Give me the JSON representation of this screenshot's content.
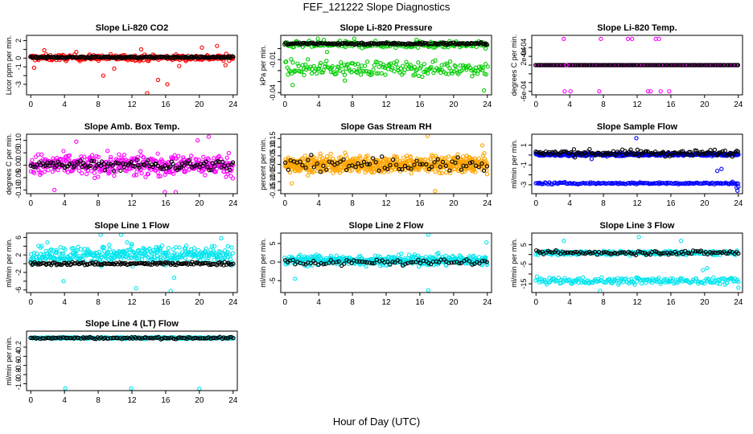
{
  "page": {
    "title": "FEF_121222  Slope Diagnostics",
    "x_axis_label": "Hour of Day (UTC)"
  },
  "colors": {
    "background": "#ffffff",
    "axis": "#000000",
    "co2": "#ff0000",
    "pressure": "#00cc00",
    "temperature": "#ff00ff",
    "box_temp": "#ff00ff",
    "rh": "#ffa500",
    "sample_flow": "#0000ff",
    "line_flow": "#00e5ee",
    "overlay": "#000000"
  },
  "chart_data": [
    {
      "type": "scatter",
      "title": "Slope Li-820 CO2",
      "xlabel": "",
      "ylabel": "Licor ppm per min.",
      "xlim": [
        -0.5,
        24.5
      ],
      "ylim": [
        -4.2,
        2.6
      ],
      "x_ticks": [
        "0",
        "4",
        "8",
        "12",
        "16",
        "20",
        "24"
      ],
      "y_ticks": [
        {
          "v": 2,
          "label": "2"
        },
        {
          "v": 1,
          "label": ""
        },
        {
          "v": 0,
          "label": "0"
        },
        {
          "v": -1,
          "label": "-1"
        },
        {
          "v": -2,
          "label": ""
        },
        {
          "v": -3,
          "label": "-3"
        }
      ],
      "series": [
        {
          "color_key": "co2",
          "band_center": 0.05,
          "band_spread": 0.45,
          "n": 300,
          "jitter": 0.25
        },
        {
          "color_key": "overlay",
          "band_center": 0.1,
          "band_spread": 0.12,
          "n": 190,
          "jitter": 0.08
        }
      ],
      "outliers": [
        [
          13.8,
          -4.1
        ],
        [
          16.2,
          -3.0
        ],
        [
          15.1,
          -2.5
        ],
        [
          8.6,
          -2.0
        ],
        [
          1.6,
          0.9
        ],
        [
          0.4,
          -1.1
        ],
        [
          23.1,
          -0.8
        ],
        [
          17.6,
          -0.9
        ],
        [
          20.3,
          1.2
        ],
        [
          22.1,
          1.4
        ],
        [
          5.4,
          0.7
        ],
        [
          9.9,
          -1.2
        ],
        [
          13.1,
          1.0
        ]
      ]
    },
    {
      "type": "scatter",
      "title": "Slope Li-820 Pressure",
      "xlabel": "",
      "ylabel": "kPa per min.",
      "xlim": [
        -0.5,
        24.5
      ],
      "ylim": [
        -0.042,
        0.012
      ],
      "x_ticks": [
        "0",
        "4",
        "8",
        "12",
        "16",
        "20",
        "24"
      ],
      "y_ticks": [
        {
          "v": 0.0,
          "label": ""
        },
        {
          "v": -0.01,
          "label": "-0.01"
        },
        {
          "v": -0.02,
          "label": ""
        },
        {
          "v": -0.03,
          "label": ""
        },
        {
          "v": -0.04,
          "label": "-0.04"
        }
      ],
      "series": [
        {
          "color_key": "pressure",
          "band_center": 0.0035,
          "band_spread": 0.004,
          "n": 200,
          "jitter": 0.002
        },
        {
          "color_key": "pressure",
          "band_center": -0.018,
          "band_spread": 0.009,
          "n": 200,
          "jitter": 0.004
        },
        {
          "color_key": "overlay",
          "band_center": 0.0045,
          "band_spread": 0.0015,
          "n": 170,
          "jitter": 0.0008
        }
      ],
      "outliers": [
        [
          3.9,
          0.009
        ],
        [
          4.6,
          0.008
        ],
        [
          15.6,
          0.008
        ],
        [
          17.3,
          0.006
        ],
        [
          0.9,
          -0.033
        ],
        [
          23.6,
          -0.038
        ],
        [
          8.2,
          0.009
        ],
        [
          7.1,
          -0.029
        ],
        [
          5.0,
          -0.003
        ]
      ]
    },
    {
      "type": "scatter",
      "title": "Slope Li-820 Temp.",
      "xlabel": "",
      "ylabel": "degrees C per min.",
      "xlim": [
        -0.5,
        24.5
      ],
      "ylim": [
        -0.00068,
        0.00068
      ],
      "x_ticks": [
        "0",
        "4",
        "8",
        "12",
        "16",
        "20",
        "24"
      ],
      "y_ticks": [
        {
          "v": 0.0004,
          "label": "4e-04"
        },
        {
          "v": 0.0002,
          "label": "2e-04"
        },
        {
          "v": 0.0,
          "label": ""
        },
        {
          "v": -0.0002,
          "label": ""
        },
        {
          "v": -0.0004,
          "label": ""
        },
        {
          "v": -0.0006,
          "label": "-6e-04"
        }
      ],
      "series": [
        {
          "color_key": "temperature",
          "band_center": 0.0,
          "band_spread": 0.0,
          "n": 240,
          "jitter": 0.0
        },
        {
          "color_key": "overlay",
          "band_center": 0.0,
          "band_spread": 0.0,
          "n": 120,
          "jitter": 0.0
        }
      ],
      "outliers": [
        [
          3.3,
          0.0006
        ],
        [
          7.7,
          0.0006
        ],
        [
          10.9,
          0.0006
        ],
        [
          11.4,
          0.0006
        ],
        [
          14.2,
          0.0006
        ],
        [
          14.6,
          0.0006
        ],
        [
          3.4,
          -0.0006
        ],
        [
          4.1,
          -0.0006
        ],
        [
          7.5,
          -0.0006
        ],
        [
          13.3,
          -0.0006
        ],
        [
          13.6,
          -0.0006
        ],
        [
          14.8,
          -0.0006
        ],
        [
          15.8,
          -0.0006
        ],
        [
          3.6,
          0.0
        ]
      ]
    },
    {
      "type": "scatter",
      "title": "Slope Amb. Box Temp.",
      "xlabel": "",
      "ylabel": "degrees C per min.",
      "xlim": [
        -0.5,
        24.5
      ],
      "ylim": [
        -0.115,
        0.125
      ],
      "x_ticks": [
        "0",
        "4",
        "8",
        "12",
        "16",
        "20",
        "24"
      ],
      "y_ticks": [
        {
          "v": 0.1,
          "label": "0.10"
        },
        {
          "v": 0.05,
          "label": "0.05"
        },
        {
          "v": 0.0,
          "label": "0.00"
        },
        {
          "v": -0.05,
          "label": "-0.05"
        },
        {
          "v": -0.1,
          "label": "-0.10"
        }
      ],
      "series": [
        {
          "color_key": "box_temp",
          "band_center": 0.0,
          "band_spread": 0.06,
          "n": 420,
          "jitter": 0.02
        },
        {
          "color_key": "overlay",
          "band_center": 0.0,
          "band_spread": 0.03,
          "n": 120,
          "jitter": 0.01
        }
      ],
      "outliers": [
        [
          15.9,
          -0.11
        ],
        [
          21.1,
          0.115
        ],
        [
          19.8,
          0.1
        ],
        [
          2.8,
          -0.1
        ],
        [
          17.2,
          -0.11
        ],
        [
          5.4,
          0.095
        ]
      ]
    },
    {
      "type": "scatter",
      "title": "Slope Gas Stream RH",
      "xlabel": "",
      "ylabel": "percent per min.",
      "xlim": [
        -0.5,
        24.5
      ],
      "ylim": [
        -0.17,
        0.175
      ],
      "x_ticks": [
        "0",
        "4",
        "8",
        "12",
        "16",
        "20",
        "24"
      ],
      "y_ticks": [
        {
          "v": 0.15,
          "label": "0.15"
        },
        {
          "v": 0.1,
          "label": "0.10"
        },
        {
          "v": 0.05,
          "label": "0.05"
        },
        {
          "v": 0.0,
          "label": "0.00"
        },
        {
          "v": -0.05,
          "label": "-0.05"
        },
        {
          "v": -0.1,
          "label": "-0.10"
        },
        {
          "v": -0.15,
          "label": "-0.15"
        }
      ],
      "series": [
        {
          "color_key": "rh",
          "band_center": 0.0,
          "band_spread": 0.07,
          "n": 650,
          "jitter": 0.02
        },
        {
          "color_key": "overlay",
          "band_center": 0.0,
          "band_spread": 0.06,
          "n": 70,
          "jitter": 0.01
        }
      ],
      "outliers": [
        [
          16.9,
          0.165
        ],
        [
          17.8,
          -0.155
        ],
        [
          0.8,
          -0.11
        ],
        [
          23.4,
          0.11
        ]
      ]
    },
    {
      "type": "scatter",
      "title": "Slope Sample Flow",
      "xlabel": "",
      "ylabel": "ml/min per min.",
      "xlim": [
        -0.5,
        24.5
      ],
      "ylim": [
        -3.9,
        2.1
      ],
      "x_ticks": [
        "0",
        "4",
        "8",
        "12",
        "16",
        "20",
        "24"
      ],
      "y_ticks": [
        {
          "v": 1,
          "label": "1"
        },
        {
          "v": 0,
          "label": ""
        },
        {
          "v": -1,
          "label": "-1"
        },
        {
          "v": -2,
          "label": ""
        },
        {
          "v": -3,
          "label": "-3"
        }
      ],
      "series": [
        {
          "color_key": "sample_flow",
          "band_center": 0.05,
          "band_spread": 0.18,
          "n": 420,
          "jitter": 0.1
        },
        {
          "color_key": "sample_flow",
          "band_center": -2.85,
          "band_spread": 0.12,
          "n": 160,
          "jitter": 0.08
        },
        {
          "color_key": "overlay",
          "band_center": 0.2,
          "band_spread": 0.45,
          "n": 140,
          "jitter": 0.2
        }
      ],
      "outliers": [
        [
          11.9,
          1.7
        ],
        [
          23.3,
          -2.7
        ],
        [
          23.8,
          -3.3
        ],
        [
          23.9,
          -3.6
        ],
        [
          24.0,
          -3.2
        ],
        [
          22.0,
          -1.4
        ],
        [
          21.5,
          -1.6
        ],
        [
          6.6,
          -0.4
        ]
      ]
    },
    {
      "type": "scatter",
      "title": "Slope Line 1 Flow",
      "xlabel": "",
      "ylabel": "ml/min per min.",
      "xlim": [
        -0.5,
        24.5
      ],
      "ylim": [
        -6.6,
        7.0
      ],
      "x_ticks": [
        "0",
        "4",
        "8",
        "12",
        "16",
        "20",
        "24"
      ],
      "y_ticks": [
        {
          "v": 6,
          "label": "6"
        },
        {
          "v": 4,
          "label": ""
        },
        {
          "v": 2,
          "label": "2"
        },
        {
          "v": 0,
          "label": ""
        },
        {
          "v": -2,
          "label": "-2"
        },
        {
          "v": -4,
          "label": ""
        },
        {
          "v": -6,
          "label": "-6"
        }
      ],
      "series": [
        {
          "color_key": "line_flow",
          "band_center": 2.0,
          "band_spread": 3.0,
          "n": 380,
          "jitter": 0.5
        },
        {
          "color_key": "overlay",
          "band_center": 0.0,
          "band_spread": 0.5,
          "n": 150,
          "jitter": 0.25
        }
      ],
      "outliers": [
        [
          16.6,
          -6.4
        ],
        [
          8.3,
          7.0
        ],
        [
          10.7,
          6.7
        ],
        [
          17.0,
          -3.2
        ],
        [
          12.5,
          -5.6
        ],
        [
          3.9,
          -4.0
        ],
        [
          22.6,
          5.8
        ]
      ]
    },
    {
      "type": "scatter",
      "title": "Slope Line 2 Flow",
      "xlabel": "",
      "ylabel": "ml/min per min.",
      "xlim": [
        -0.5,
        24.5
      ],
      "ylim": [
        -8.2,
        7.8
      ],
      "x_ticks": [
        "0",
        "4",
        "8",
        "12",
        "16",
        "20",
        "24"
      ],
      "y_ticks": [
        {
          "v": 5,
          "label": "5"
        },
        {
          "v": 0,
          "label": "0"
        },
        {
          "v": -5,
          "label": "-5"
        }
      ],
      "series": [
        {
          "color_key": "line_flow",
          "band_center": 0.5,
          "band_spread": 2.0,
          "n": 420,
          "jitter": 0.6
        },
        {
          "color_key": "overlay",
          "band_center": 0.0,
          "band_spread": 1.2,
          "n": 80,
          "jitter": 0.4
        }
      ],
      "outliers": [
        [
          17.0,
          7.4
        ],
        [
          17.0,
          -7.6
        ],
        [
          1.2,
          -4.5
        ],
        [
          23.9,
          5.3
        ]
      ]
    },
    {
      "type": "scatter",
      "title": "Slope Line 3 Flow",
      "xlabel": "",
      "ylabel": "ml/min per min.",
      "xlim": [
        -0.5,
        24.5
      ],
      "ylim": [
        -19.5,
        11.0
      ],
      "x_ticks": [
        "0",
        "4",
        "8",
        "12",
        "16",
        "20",
        "24"
      ],
      "y_ticks": [
        {
          "v": 5,
          "label": "5"
        },
        {
          "v": 0,
          "label": ""
        },
        {
          "v": -5,
          "label": "-5"
        },
        {
          "v": -10,
          "label": ""
        },
        {
          "v": -15,
          "label": "-15"
        }
      ],
      "series": [
        {
          "color_key": "line_flow",
          "band_center": 0.8,
          "band_spread": 1.5,
          "n": 260,
          "jitter": 0.6
        },
        {
          "color_key": "line_flow",
          "band_center": -13.5,
          "band_spread": 2.5,
          "n": 200,
          "jitter": 0.8
        },
        {
          "color_key": "overlay",
          "band_center": 1.0,
          "band_spread": 1.6,
          "n": 100,
          "jitter": 0.6
        }
      ],
      "outliers": [
        [
          3.3,
          7.0
        ],
        [
          12.2,
          9.0
        ],
        [
          17.2,
          7.0
        ],
        [
          7.6,
          -18.8
        ],
        [
          24.0,
          -17.0
        ],
        [
          19.8,
          -8.0
        ],
        [
          20.3,
          -7.0
        ]
      ]
    },
    {
      "type": "scatter",
      "title": "Slope Line 4 (LT) Flow",
      "xlabel": "",
      "ylabel": "ml/min per min.",
      "xlim": [
        -0.5,
        24.5
      ],
      "ylim": [
        -1.15,
        0.15
      ],
      "x_ticks": [
        "0",
        "4",
        "8",
        "12",
        "16",
        "20",
        "24"
      ],
      "y_ticks": [
        {
          "v": -0.2,
          "label": "-0.2"
        },
        {
          "v": -0.4,
          "label": "-0.4"
        },
        {
          "v": -0.6,
          "label": "-0.6"
        },
        {
          "v": -0.8,
          "label": "-0.8"
        },
        {
          "v": -1.0,
          "label": "-1.0"
        }
      ],
      "series": [
        {
          "color_key": "line_flow",
          "band_center": 0.0,
          "band_spread": 0.025,
          "n": 320,
          "jitter": 0.012
        },
        {
          "color_key": "overlay",
          "band_center": 0.0,
          "band_spread": 0.03,
          "n": 110,
          "jitter": 0.012
        }
      ],
      "outliers": [
        [
          4.1,
          -1.1
        ],
        [
          11.9,
          -1.1
        ],
        [
          20.0,
          -1.11
        ]
      ]
    }
  ]
}
